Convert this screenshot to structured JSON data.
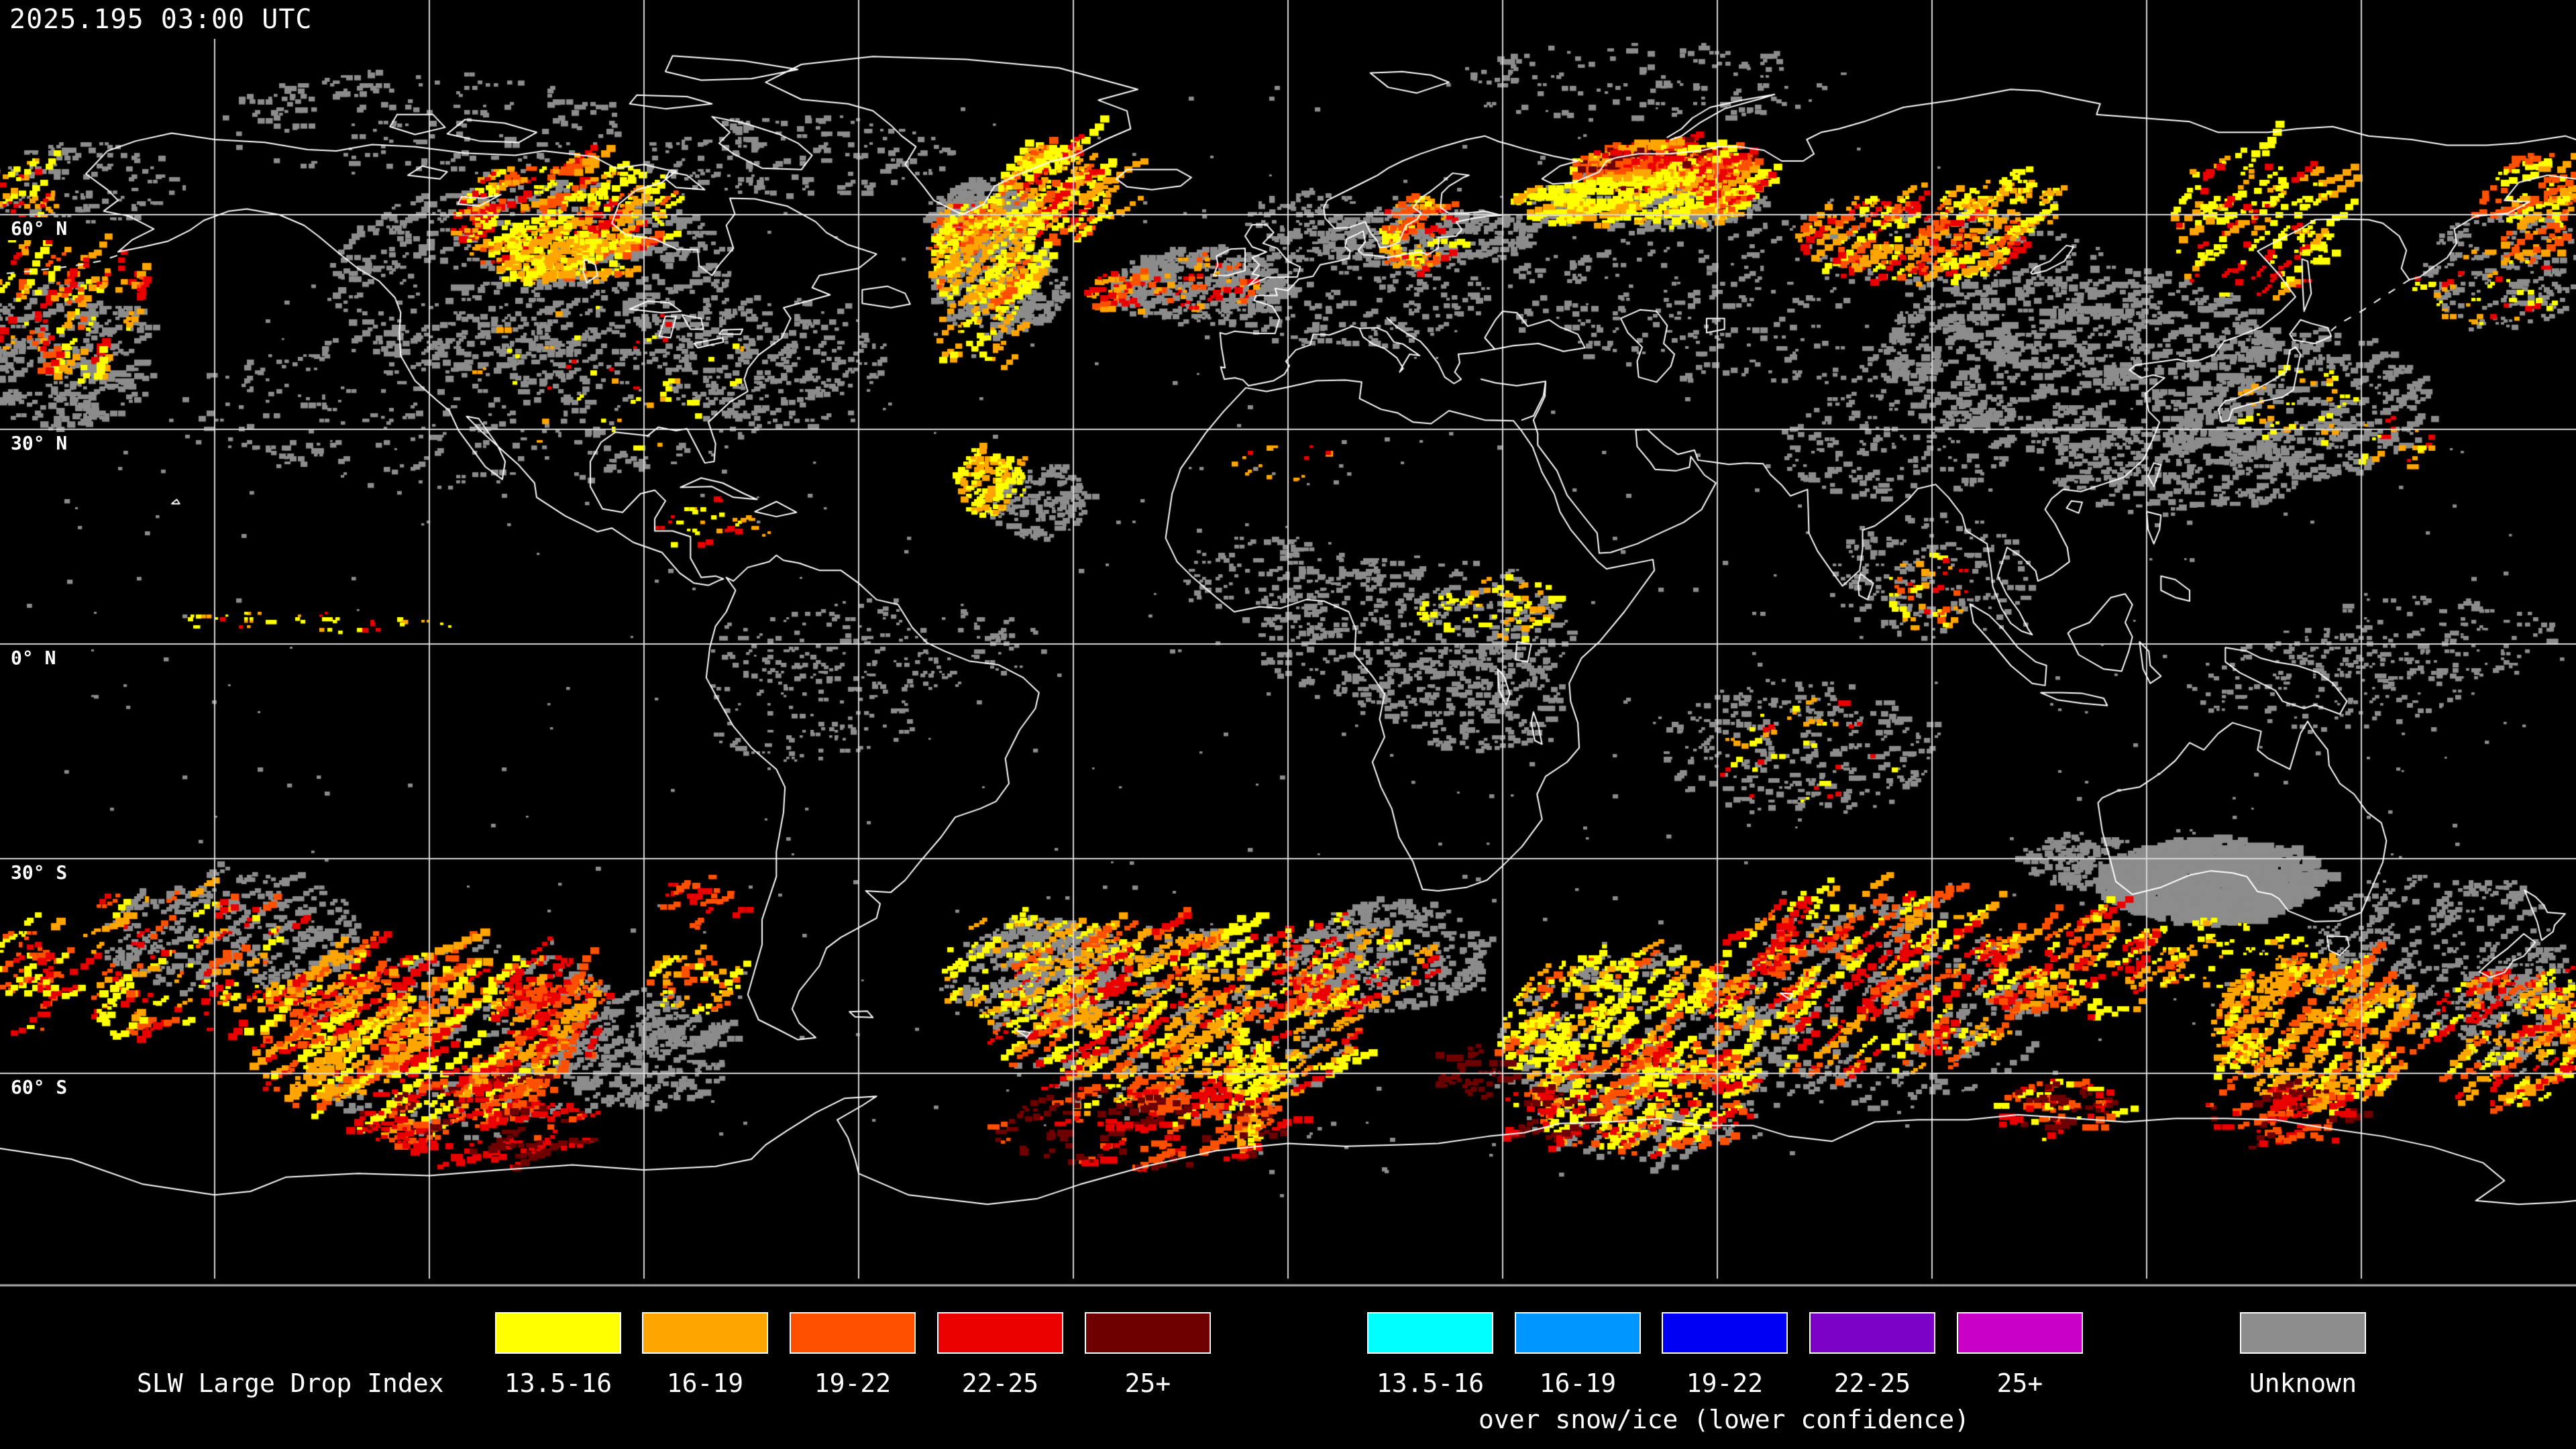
{
  "header": {
    "timestamp": "2025.195 03:00 UTC"
  },
  "map": {
    "lat_labels": [
      {
        "label": "60° N"
      },
      {
        "label": "30° N"
      },
      {
        "label": "0° N"
      },
      {
        "label": "30° S"
      },
      {
        "label": "60° S"
      }
    ],
    "colors": {
      "background": "#000000",
      "coastline": "#FFFFFF",
      "graticule": "#D8D8D8",
      "separator": "#B0B0B0"
    }
  },
  "legend": {
    "title": "SLW Large Drop Index",
    "primary": [
      {
        "range": "13.5-16",
        "color": "#FFFF00"
      },
      {
        "range": "16-19",
        "color": "#FFA500"
      },
      {
        "range": "19-22",
        "color": "#FF5000"
      },
      {
        "range": "22-25",
        "color": "#EB0000"
      },
      {
        "range": "25+",
        "color": "#6E0000"
      }
    ],
    "snow_ice": [
      {
        "range": "13.5-16",
        "color": "#00FFFF"
      },
      {
        "range": "16-19",
        "color": "#0096FF"
      },
      {
        "range": "19-22",
        "color": "#0000F5"
      },
      {
        "range": "22-25",
        "color": "#7D00C8"
      },
      {
        "range": "25+",
        "color": "#C800C8"
      }
    ],
    "snow_ice_caption": "over snow/ice (lower confidence)",
    "unknown": {
      "label": "Unknown",
      "color": "#8C8C8C"
    }
  }
}
